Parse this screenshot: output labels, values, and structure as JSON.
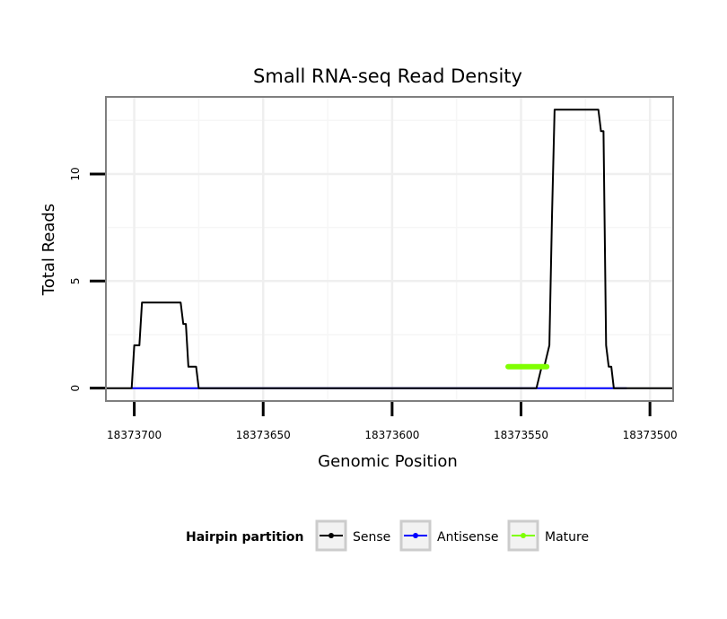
{
  "chart_data": {
    "type": "line",
    "title": "Small RNA-seq Read Density",
    "xlabel": "Genomic Position",
    "ylabel": "Total Reads",
    "xlim": [
      18373711,
      18373491
    ],
    "ylim": [
      -0.6,
      13.6
    ],
    "x_reversed": true,
    "x_ticks": [
      18373700,
      18373650,
      18373600,
      18373550,
      18373500
    ],
    "x_tick_labels": [
      "18373700",
      "18373650",
      "18373600",
      "18373550",
      "18373500"
    ],
    "y_ticks": [
      0,
      5,
      10
    ],
    "y_tick_labels": [
      "0",
      "5",
      "10"
    ],
    "grid": true,
    "legend": {
      "title": "Hairpin partition",
      "position": "bottom",
      "entries": [
        "Sense",
        "Antisense",
        "Mature"
      ]
    },
    "series": [
      {
        "name": "Sense",
        "color": "#000000",
        "x": [
          18373711,
          18373701,
          18373700,
          18373698,
          18373697,
          18373682,
          18373681,
          18373680,
          18373679,
          18373676,
          18373675,
          18373551,
          18373550,
          18373544,
          18373542,
          18373541,
          18373539,
          18373538,
          18373537,
          18373536,
          18373535,
          18373526,
          18373520,
          18373519,
          18373518,
          18373517,
          18373516,
          18373515,
          18373514,
          18373513,
          18373512,
          18373511,
          18373510,
          18373509,
          18373508,
          18373491
        ],
        "values": [
          0,
          0,
          2,
          2,
          4,
          4,
          3,
          3,
          1,
          1,
          0,
          0,
          0,
          0,
          1,
          1,
          2,
          8,
          13,
          13,
          13,
          13,
          13,
          12,
          12,
          2,
          1,
          1,
          0,
          0,
          0,
          0,
          0,
          0,
          0,
          0
        ]
      },
      {
        "name": "Antisense",
        "color": "#0000ff",
        "x": [
          18373701,
          18373675,
          18373551,
          18373509
        ],
        "values": [
          0,
          0,
          0,
          0
        ]
      },
      {
        "name": "Mature",
        "color": "#7fff00",
        "x": [
          18373555,
          18373540
        ],
        "values": [
          1,
          1
        ]
      }
    ]
  }
}
